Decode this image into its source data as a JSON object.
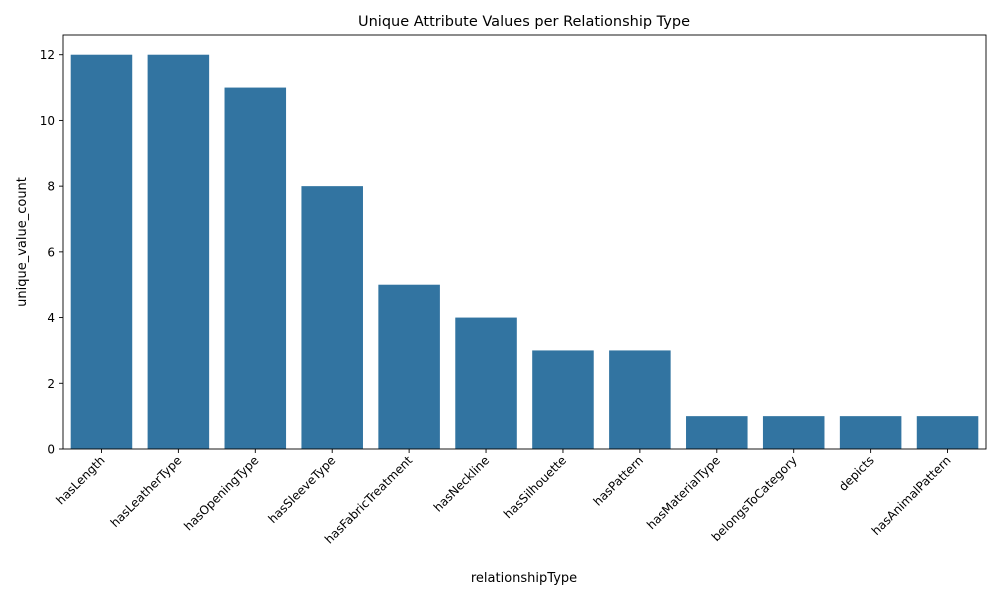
{
  "colors": {
    "bar": "#3274a1",
    "axis": "#000000",
    "background": "#ffffff"
  },
  "chart_data": {
    "type": "bar",
    "title": "Unique Attribute Values per Relationship Type",
    "xlabel": "relationshipType",
    "ylabel": "unique_value_count",
    "categories": [
      "hasLength",
      "hasLeatherType",
      "hasOpeningType",
      "hasSleeveType",
      "hasFabricTreatment",
      "hasNeckline",
      "hasSilhouette",
      "hasPattern",
      "hasMaterialType",
      "belongsToCategory",
      "depicts",
      "hasAnimalPattern"
    ],
    "values": [
      12,
      12,
      11,
      8,
      5,
      4,
      3,
      3,
      1,
      1,
      1,
      1
    ],
    "ylim": [
      0,
      12.6
    ],
    "yticks": [
      0,
      2,
      4,
      6,
      8,
      10,
      12
    ],
    "grid": false,
    "legend": "none"
  }
}
